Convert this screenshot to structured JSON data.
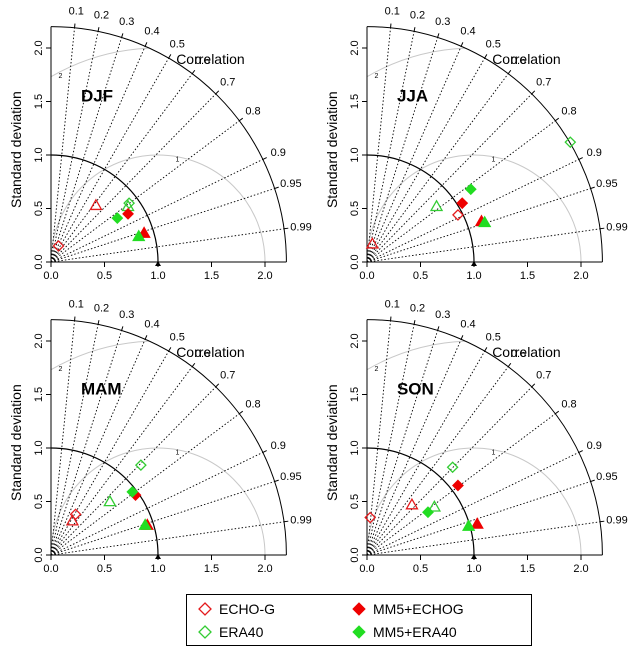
{
  "chart_data": [
    {
      "type": "scatter",
      "subtype": "taylor-diagram",
      "panel_label": "DJF",
      "ylabel": "Standard deviation",
      "corr_label": "Correlation",
      "sd_range": [
        0,
        2.2
      ],
      "sd_ticks": [
        "0.0",
        "0.5",
        "1.0",
        "1.5",
        "2.0"
      ],
      "corr_ticks": [
        "0.1",
        "0.2",
        "0.3",
        "0.4",
        "0.5",
        "0.6",
        "0.7",
        "0.8",
        "0.9",
        "0.95",
        "0.99"
      ],
      "rms_arc_labels": [
        "1",
        "2"
      ],
      "series": [
        {
          "name": "ECHO-G",
          "points": [
            {
              "x": 0.07,
              "y": 0.15,
              "marker": "diamond"
            },
            {
              "x": 0.42,
              "y": 0.53,
              "marker": "triangle"
            }
          ]
        },
        {
          "name": "ERA40",
          "points": [
            {
              "x": 0.73,
              "y": 0.55,
              "marker": "diamond"
            },
            {
              "x": 0.72,
              "y": 0.52,
              "marker": "triangle"
            }
          ]
        },
        {
          "name": "MM5+ECHOG",
          "points": [
            {
              "x": 0.72,
              "y": 0.45,
              "marker": "diamond"
            },
            {
              "x": 0.87,
              "y": 0.27,
              "marker": "triangle"
            }
          ]
        },
        {
          "name": "MM5+ERA40",
          "points": [
            {
              "x": 0.62,
              "y": 0.41,
              "marker": "diamond"
            },
            {
              "x": 0.82,
              "y": 0.24,
              "marker": "triangle"
            }
          ]
        }
      ]
    },
    {
      "type": "scatter",
      "subtype": "taylor-diagram",
      "panel_label": "JJA",
      "ylabel": "Standard deviation",
      "corr_label": "Correlation",
      "sd_range": [
        0,
        2.2
      ],
      "sd_ticks": [
        "0.0",
        "0.5",
        "1.0",
        "1.5",
        "2.0"
      ],
      "corr_ticks": [
        "0.1",
        "0.2",
        "0.3",
        "0.4",
        "0.5",
        "0.6",
        "0.7",
        "0.8",
        "0.9",
        "0.95",
        "0.99"
      ],
      "rms_arc_labels": [
        "1",
        "2"
      ],
      "series": [
        {
          "name": "ECHO-G",
          "points": [
            {
              "x": 0.85,
              "y": 0.44,
              "marker": "diamond"
            },
            {
              "x": 0.05,
              "y": 0.17,
              "marker": "triangle"
            }
          ]
        },
        {
          "name": "ERA40",
          "points": [
            {
              "x": 1.9,
              "y": 1.12,
              "marker": "diamond"
            },
            {
              "x": 0.65,
              "y": 0.52,
              "marker": "triangle"
            }
          ]
        },
        {
          "name": "MM5+ECHOG",
          "points": [
            {
              "x": 0.89,
              "y": 0.55,
              "marker": "diamond"
            },
            {
              "x": 1.07,
              "y": 0.38,
              "marker": "triangle"
            }
          ]
        },
        {
          "name": "MM5+ERA40",
          "points": [
            {
              "x": 0.97,
              "y": 0.68,
              "marker": "diamond"
            },
            {
              "x": 1.1,
              "y": 0.37,
              "marker": "triangle"
            }
          ]
        }
      ]
    },
    {
      "type": "scatter",
      "subtype": "taylor-diagram",
      "panel_label": "MAM",
      "ylabel": "Standard deviation",
      "corr_label": "Correlation",
      "sd_range": [
        0,
        2.2
      ],
      "sd_ticks": [
        "0.0",
        "0.5",
        "1.0",
        "1.5",
        "2.0"
      ],
      "corr_ticks": [
        "0.1",
        "0.2",
        "0.3",
        "0.4",
        "0.5",
        "0.6",
        "0.7",
        "0.8",
        "0.9",
        "0.95",
        "0.99"
      ],
      "rms_arc_labels": [
        "1",
        "2"
      ],
      "series": [
        {
          "name": "ECHO-G",
          "points": [
            {
              "x": 0.23,
              "y": 0.38,
              "marker": "diamond"
            },
            {
              "x": 0.2,
              "y": 0.32,
              "marker": "triangle"
            }
          ]
        },
        {
          "name": "ERA40",
          "points": [
            {
              "x": 0.84,
              "y": 0.84,
              "marker": "diamond"
            },
            {
              "x": 0.55,
              "y": 0.5,
              "marker": "triangle"
            }
          ]
        },
        {
          "name": "MM5+ECHOG",
          "points": [
            {
              "x": 0.79,
              "y": 0.56,
              "marker": "diamond"
            },
            {
              "x": 0.9,
              "y": 0.28,
              "marker": "triangle"
            }
          ]
        },
        {
          "name": "MM5+ERA40",
          "points": [
            {
              "x": 0.76,
              "y": 0.59,
              "marker": "diamond"
            },
            {
              "x": 0.88,
              "y": 0.28,
              "marker": "triangle"
            }
          ]
        }
      ]
    },
    {
      "type": "scatter",
      "subtype": "taylor-diagram",
      "panel_label": "SON",
      "ylabel": "Standard deviation",
      "corr_label": "Correlation",
      "sd_range": [
        0,
        2.2
      ],
      "sd_ticks": [
        "0.0",
        "0.5",
        "1.0",
        "1.5",
        "2.0"
      ],
      "corr_ticks": [
        "0.1",
        "0.2",
        "0.3",
        "0.4",
        "0.5",
        "0.6",
        "0.7",
        "0.8",
        "0.9",
        "0.95",
        "0.99"
      ],
      "rms_arc_labels": [
        "1",
        "2"
      ],
      "series": [
        {
          "name": "ECHO-G",
          "points": [
            {
              "x": 0.03,
              "y": 0.35,
              "marker": "diamond"
            },
            {
              "x": 0.42,
              "y": 0.47,
              "marker": "triangle"
            }
          ]
        },
        {
          "name": "ERA40",
          "points": [
            {
              "x": 0.8,
              "y": 0.82,
              "marker": "diamond"
            },
            {
              "x": 0.63,
              "y": 0.45,
              "marker": "triangle"
            }
          ]
        },
        {
          "name": "MM5+ECHOG",
          "points": [
            {
              "x": 0.85,
              "y": 0.65,
              "marker": "diamond"
            },
            {
              "x": 1.03,
              "y": 0.29,
              "marker": "triangle"
            }
          ]
        },
        {
          "name": "MM5+ERA40",
          "points": [
            {
              "x": 0.57,
              "y": 0.4,
              "marker": "diamond"
            },
            {
              "x": 0.95,
              "y": 0.27,
              "marker": "triangle"
            }
          ]
        }
      ]
    }
  ],
  "legend": {
    "placement": "bottom-center",
    "items": [
      {
        "label": "ECHO-G",
        "color": "#e41a1c",
        "filled": false
      },
      {
        "label": "ERA40",
        "color": "#33cc33",
        "filled": false
      },
      {
        "label": "MM5+ECHOG",
        "color": "#ee0000",
        "filled": true
      },
      {
        "label": "MM5+ERA40",
        "color": "#22dd22",
        "filled": true
      }
    ]
  },
  "colors": {
    "ECHO-G": "#e41a1c",
    "ERA40": "#33cc33",
    "MM5+ECHOG": "#ee0000",
    "MM5+ERA40": "#22dd22"
  }
}
